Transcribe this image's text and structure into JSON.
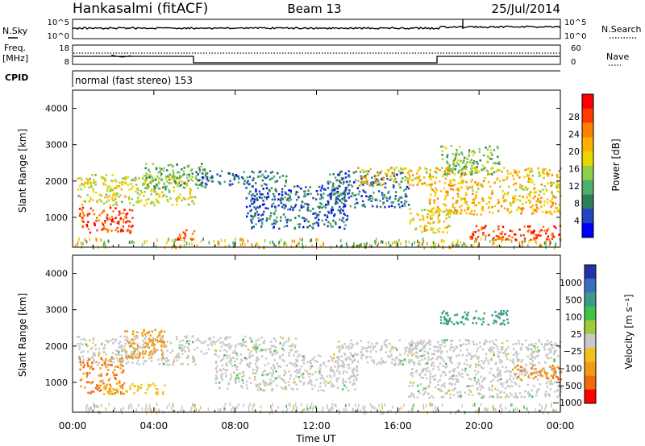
{
  "header": {
    "station": "Hankasalmi (fitACF)",
    "beam": "Beam 13",
    "date": "25/Jul/2014"
  },
  "noise_panel": {
    "left_label": "N.Sky",
    "right_label": "N.Search",
    "tick_top": "10^5",
    "tick_bottom": "10^0"
  },
  "freq_panel": {
    "left_label_line1": "Freq.",
    "left_label_line2": "[MHz]",
    "left_tick_top": "18",
    "left_tick_bottom": "8",
    "right_tick_top": "60",
    "right_tick_bottom": "0",
    "right_label": "Nave"
  },
  "cpid": {
    "label": "CPID",
    "program": "normal (fast stereo) 153"
  },
  "time_axis": {
    "xlabel": "Time UT",
    "ticks": [
      "00:00",
      "04:00",
      "08:00",
      "12:00",
      "16:00",
      "20:00",
      "00:00"
    ]
  },
  "power_colorbar": {
    "label": "Power [dB]",
    "ticks": [
      "28",
      "24",
      "20",
      "16",
      "12",
      "8",
      "4"
    ],
    "colors": [
      "#ff0000",
      "#ff3a00",
      "#ff7f00",
      "#ffb000",
      "#e6d800",
      "#8ed04a",
      "#4fae6a",
      "#2e7e5c",
      "#2244c0",
      "#0000ff"
    ]
  },
  "velocity_colorbar": {
    "label": "Velocity [m s⁻¹]",
    "ticks": [
      "1000",
      "500",
      "100",
      "25",
      "−25",
      "−100",
      "−500",
      "−1000"
    ],
    "colors": [
      "#2233aa",
      "#3a6ec0",
      "#3c9a8a",
      "#3ec24a",
      "#9ecb3c",
      "#c8c8c8",
      "#f0c020",
      "#f29a18",
      "#f06a10",
      "#ff0000"
    ]
  },
  "chart_data": [
    {
      "type": "heatmap",
      "title": "Power",
      "xlabel": "Time UT",
      "ylabel": "Slant Range [km]",
      "xlim": [
        "00:00",
        "24:00"
      ],
      "ylim": [
        180,
        4500
      ],
      "yticks": [
        1000,
        2000,
        3000,
        4000
      ],
      "colorbar": "Power [dB]",
      "regions": [
        {
          "t0": 0.2,
          "t1": 6.0,
          "r0": 1350,
          "r1": 2200,
          "level": 16
        },
        {
          "t0": 0.3,
          "t1": 3.0,
          "r0": 600,
          "r1": 1300,
          "level": 27
        },
        {
          "t0": 3.5,
          "t1": 6.5,
          "r0": 1800,
          "r1": 2500,
          "level": 10
        },
        {
          "t0": 5.0,
          "t1": 6.0,
          "r0": 400,
          "r1": 700,
          "level": 26
        },
        {
          "t0": 6.0,
          "t1": 10.5,
          "r0": 1900,
          "r1": 2300,
          "level": 6
        },
        {
          "t0": 8.5,
          "t1": 13.5,
          "r0": 700,
          "r1": 1900,
          "level": 5
        },
        {
          "t0": 12.5,
          "t1": 16.5,
          "r0": 1300,
          "r1": 2300,
          "level": 6
        },
        {
          "t0": 14.0,
          "t1": 17.5,
          "r0": 1900,
          "r1": 2400,
          "level": 19
        },
        {
          "t0": 16.5,
          "t1": 18.5,
          "r0": 600,
          "r1": 1300,
          "level": 18
        },
        {
          "t0": 17.5,
          "t1": 24.0,
          "r0": 1100,
          "r1": 2400,
          "level": 19
        },
        {
          "t0": 19.5,
          "t1": 24.0,
          "r0": 400,
          "r1": 800,
          "level": 27
        },
        {
          "t0": 18.0,
          "t1": 21.0,
          "r0": 2200,
          "r1": 3000,
          "level": 12
        }
      ]
    },
    {
      "type": "heatmap",
      "title": "Velocity",
      "xlabel": "Time UT",
      "ylabel": "Slant Range [km]",
      "xlim": [
        "00:00",
        "24:00"
      ],
      "ylim": [
        180,
        4500
      ],
      "yticks": [
        1000,
        2000,
        3000,
        4000
      ],
      "colorbar": "Velocity [m s⁻¹]",
      "regions": [
        {
          "t0": 0.2,
          "t1": 6.0,
          "r0": 1500,
          "r1": 2300,
          "level": 0
        },
        {
          "t0": 0.3,
          "t1": 2.5,
          "r0": 700,
          "r1": 1700,
          "level": -300
        },
        {
          "t0": 1.5,
          "t1": 4.5,
          "r0": 700,
          "r1": 1000,
          "level": -60
        },
        {
          "t0": 2.5,
          "t1": 4.5,
          "r0": 1700,
          "r1": 2500,
          "level": -200
        },
        {
          "t0": 6.0,
          "t1": 11.0,
          "r0": 1800,
          "r1": 2300,
          "level": 0
        },
        {
          "t0": 7.0,
          "t1": 14.0,
          "r0": 800,
          "r1": 1800,
          "level": 0
        },
        {
          "t0": 13.0,
          "t1": 17.5,
          "r0": 1500,
          "r1": 2200,
          "level": 0
        },
        {
          "t0": 16.5,
          "t1": 24.0,
          "r0": 600,
          "r1": 2200,
          "level": 0
        },
        {
          "t0": 18.0,
          "t1": 21.5,
          "r0": 2600,
          "r1": 3000,
          "level": 150
        },
        {
          "t0": 21.5,
          "t1": 24.0,
          "r0": 1100,
          "r1": 1500,
          "level": -250
        }
      ]
    }
  ]
}
